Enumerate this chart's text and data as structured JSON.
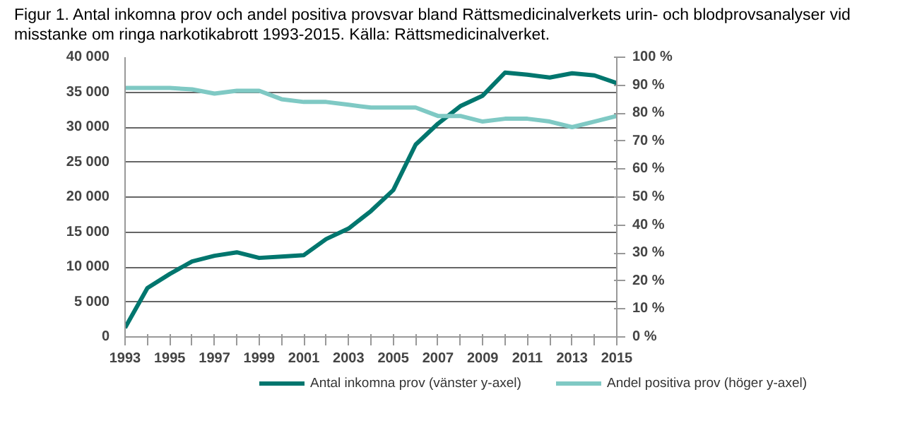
{
  "chart_data": {
    "type": "line",
    "title": "Figur 1. Antal inkomna prov och andel positiva provsvar bland Rättsmedicinalverkets urin- och blodprovsanalyser vid misstanke om ringa narkotikabrott 1993-2015. Källa: Rättsmedicinalverket.",
    "x": [
      1993,
      1994,
      1995,
      1996,
      1997,
      1998,
      1999,
      2000,
      2001,
      2002,
      2003,
      2004,
      2005,
      2006,
      2007,
      2008,
      2009,
      2010,
      2011,
      2012,
      2013,
      2014,
      2015
    ],
    "series": [
      {
        "name": "Antal inkomna prov (vänster y-axel)",
        "color": "#00766e",
        "values": [
          1300,
          7000,
          9000,
          10800,
          11600,
          12100,
          11300,
          11500,
          11700,
          14000,
          15500,
          18000,
          21000,
          27500,
          30500,
          33000,
          34500,
          37800,
          37500,
          37100,
          37700,
          37400,
          36300
        ]
      },
      {
        "name": "Andel positiva prov (höger y-axel)",
        "color": "#7fc9c4",
        "axis": "y2",
        "values": [
          89,
          89,
          89,
          88.5,
          87,
          88,
          88,
          85,
          84,
          84,
          83,
          82,
          82,
          82,
          79,
          79,
          77,
          78,
          78,
          77,
          75,
          77,
          79
        ]
      }
    ],
    "xlim": [
      1993,
      2015
    ],
    "xticks": [
      1993,
      {
        "value": 1994,
        "label": null
      },
      1995,
      {
        "value": 1996,
        "label": null
      },
      1997,
      {
        "value": 1998,
        "label": null
      },
      1999,
      {
        "value": 2000,
        "label": null
      },
      2001,
      {
        "value": 2002,
        "label": null
      },
      2003,
      {
        "value": 2004,
        "label": null
      },
      2005,
      {
        "value": 2006,
        "label": null
      },
      2007,
      {
        "value": 2008,
        "label": null
      },
      2009,
      {
        "value": 2010,
        "label": null
      },
      2011,
      {
        "value": 2012,
        "label": null
      },
      2013,
      {
        "value": 2014,
        "label": null
      },
      2015
    ],
    "ylim": [
      0,
      40000
    ],
    "yticks": [
      0,
      {
        "value": 5000,
        "label": "5 000"
      },
      {
        "value": 10000,
        "label": "10 000"
      },
      {
        "value": 15000,
        "label": "15 000"
      },
      {
        "value": 20000,
        "label": "20 000"
      },
      {
        "value": 25000,
        "label": "25 000"
      },
      {
        "value": 30000,
        "label": "30 000"
      },
      {
        "value": 35000,
        "label": "35 000"
      },
      {
        "value": 40000,
        "label": "40 000"
      }
    ],
    "y2lim": [
      0,
      100
    ],
    "y2ticks": [
      {
        "value": 0,
        "label": "0 %"
      },
      {
        "value": 10,
        "label": "10 %"
      },
      {
        "value": 20,
        "label": "20 %"
      },
      {
        "value": 30,
        "label": "30 %"
      },
      {
        "value": 40,
        "label": "40 %"
      },
      {
        "value": 50,
        "label": "50 %"
      },
      {
        "value": 60,
        "label": "60 %"
      },
      {
        "value": 70,
        "label": "70 %"
      },
      {
        "value": 80,
        "label": "80 %"
      },
      {
        "value": 90,
        "label": "90 %"
      },
      {
        "value": 100,
        "label": "100 %"
      }
    ],
    "grid": "y",
    "legend": "bottom",
    "line_style": "solid"
  }
}
